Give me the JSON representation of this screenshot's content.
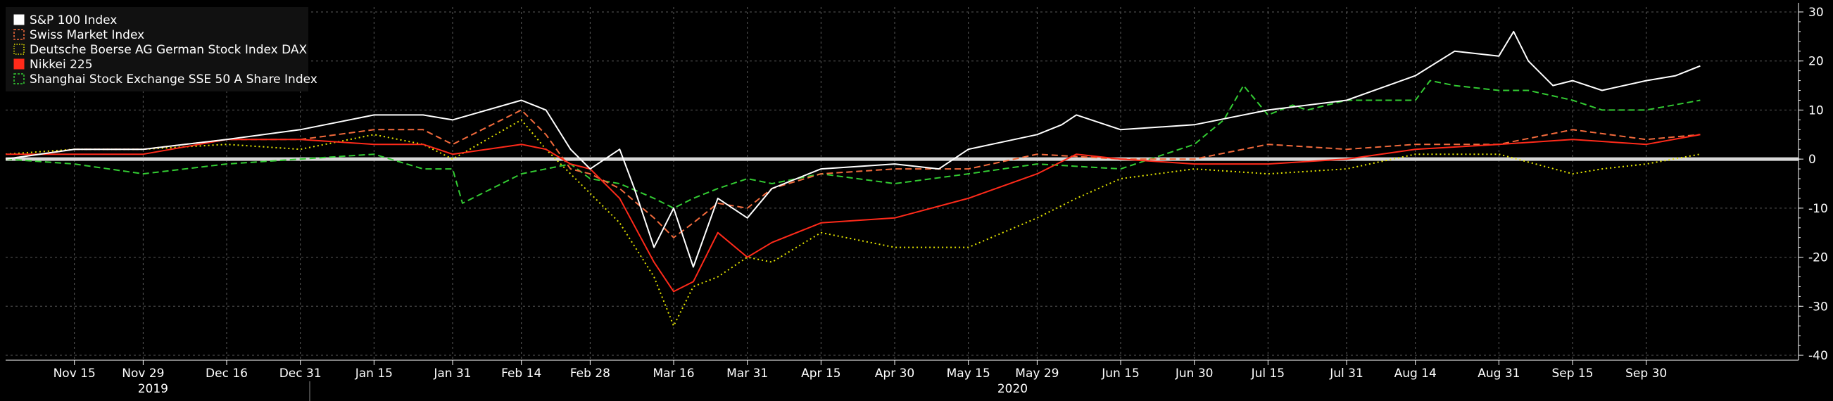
{
  "chart_data": {
    "type": "line",
    "title": "",
    "xlabel": "",
    "ylabel": "",
    "ylim": [
      -41,
      31
    ],
    "y_ticks": [
      30,
      20,
      10,
      0,
      -10,
      -20,
      -30,
      -40
    ],
    "y_tick_labels": [
      "30",
      "20",
      "10",
      "0",
      "-10",
      "-20",
      "-30",
      "-40"
    ],
    "x_range": [
      0,
      365
    ],
    "x_ticks": [
      {
        "label": "Nov 15",
        "x": 14
      },
      {
        "label": "Nov 29",
        "x": 28
      },
      {
        "label": "Dec 16",
        "x": 45
      },
      {
        "label": "Dec 31",
        "x": 60
      },
      {
        "label": "Jan 15",
        "x": 75
      },
      {
        "label": "Jan 31",
        "x": 91
      },
      {
        "label": "Feb 14",
        "x": 105
      },
      {
        "label": "Feb 28",
        "x": 119
      },
      {
        "label": "Mar 16",
        "x": 136
      },
      {
        "label": "Mar 31",
        "x": 151
      },
      {
        "label": "Apr 15",
        "x": 166
      },
      {
        "label": "Apr 30",
        "x": 181
      },
      {
        "label": "May 15",
        "x": 196
      },
      {
        "label": "May 29",
        "x": 210
      },
      {
        "label": "Jun 15",
        "x": 227
      },
      {
        "label": "Jun 30",
        "x": 242
      },
      {
        "label": "Jul 15",
        "x": 257
      },
      {
        "label": "Jul 31",
        "x": 273
      },
      {
        "label": "Aug 14",
        "x": 287
      },
      {
        "label": "Aug 31",
        "x": 304
      },
      {
        "label": "Sep 15",
        "x": 319
      },
      {
        "label": "Sep 30",
        "x": 334
      }
    ],
    "years": [
      {
        "label": "2019",
        "x": 30
      },
      {
        "label": "2020",
        "x": 205
      }
    ],
    "legend_position": "top-left",
    "series": [
      {
        "name": "S&P 100 Index",
        "color": "#ffffff",
        "style": "solid",
        "legend_marker": "filled",
        "x": [
          0,
          14,
          28,
          45,
          60,
          75,
          85,
          91,
          105,
          110,
          115,
          119,
          125,
          128,
          132,
          136,
          140,
          145,
          151,
          156,
          166,
          181,
          190,
          196,
          210,
          215,
          218,
          227,
          242,
          257,
          273,
          287,
          295,
          304,
          307,
          310,
          315,
          319,
          325,
          334,
          340,
          345
        ],
        "values": [
          0,
          2,
          2,
          4,
          6,
          9,
          9,
          8,
          12,
          10,
          2,
          -2,
          2,
          -6,
          -18,
          -10,
          -22,
          -8,
          -12,
          -6,
          -2,
          -1,
          -2,
          2,
          5,
          7,
          9,
          6,
          7,
          10,
          12,
          17,
          22,
          21,
          26,
          20,
          15,
          16,
          14,
          16,
          17,
          19
        ]
      },
      {
        "name": "Swiss Market Index",
        "color": "#f26a3c",
        "style": "dashed",
        "legend_marker": "outline",
        "x": [
          0,
          14,
          28,
          45,
          60,
          75,
          85,
          91,
          105,
          110,
          115,
          119,
          125,
          132,
          136,
          140,
          145,
          151,
          156,
          166,
          181,
          196,
          210,
          227,
          242,
          257,
          273,
          287,
          304,
          319,
          334,
          345
        ],
        "values": [
          0,
          2,
          2,
          4,
          4,
          6,
          6,
          3,
          10,
          5,
          -2,
          -3,
          -6,
          -12,
          -16,
          -13,
          -9,
          -10,
          -6,
          -3,
          -2,
          -2,
          1,
          0,
          0,
          3,
          2,
          3,
          3,
          6,
          4,
          5
        ]
      },
      {
        "name": "Deutsche Boerse AG German Stock Index DAX",
        "color": "#e6e600",
        "style": "dotted",
        "legend_marker": "outline",
        "x": [
          0,
          14,
          28,
          45,
          60,
          75,
          85,
          91,
          105,
          110,
          115,
          119,
          125,
          132,
          136,
          140,
          145,
          151,
          156,
          166,
          181,
          196,
          210,
          218,
          227,
          242,
          257,
          273,
          287,
          304,
          319,
          325,
          334,
          345
        ],
        "values": [
          1,
          2,
          2,
          3,
          2,
          5,
          3,
          0,
          8,
          2,
          -3,
          -7,
          -13,
          -24,
          -34,
          -26,
          -24,
          -20,
          -21,
          -15,
          -18,
          -18,
          -12,
          -8,
          -4,
          -2,
          -3,
          -2,
          1,
          1,
          -3,
          -2,
          -1,
          1
        ]
      },
      {
        "name": "Nikkei 225",
        "color": "#ff2a1a",
        "style": "solid",
        "legend_marker": "filled",
        "x": [
          0,
          14,
          28,
          45,
          60,
          75,
          85,
          91,
          105,
          110,
          115,
          119,
          125,
          132,
          136,
          140,
          145,
          151,
          156,
          166,
          181,
          196,
          210,
          218,
          227,
          242,
          257,
          273,
          287,
          304,
          319,
          334,
          345
        ],
        "values": [
          1,
          1,
          1,
          4,
          4,
          3,
          3,
          1,
          3,
          2,
          -1,
          -2,
          -8,
          -21,
          -27,
          -25,
          -15,
          -20,
          -17,
          -13,
          -12,
          -8,
          -3,
          1,
          0,
          -1,
          -1,
          0,
          2,
          3,
          4,
          3,
          5
        ]
      },
      {
        "name": "Shanghai Stock Exchange SSE 50 A Share Index",
        "color": "#33cc33",
        "style": "dashed",
        "legend_marker": "outline",
        "x": [
          0,
          14,
          28,
          45,
          60,
          75,
          85,
          91,
          93,
          105,
          110,
          115,
          119,
          125,
          132,
          136,
          140,
          145,
          151,
          156,
          166,
          181,
          196,
          210,
          227,
          242,
          248,
          252,
          257,
          262,
          265,
          273,
          287,
          290,
          295,
          304,
          310,
          319,
          325,
          334,
          345
        ],
        "values": [
          0,
          -1,
          -3,
          -1,
          0,
          1,
          -2,
          -2,
          -9,
          -3,
          -2,
          -1,
          -4,
          -5,
          -8,
          -10,
          -8,
          -6,
          -4,
          -5,
          -3,
          -5,
          -3,
          -1,
          -2,
          3,
          8,
          15,
          9,
          11,
          10,
          12,
          12,
          16,
          15,
          14,
          14,
          12,
          10,
          10,
          12
        ]
      }
    ]
  }
}
